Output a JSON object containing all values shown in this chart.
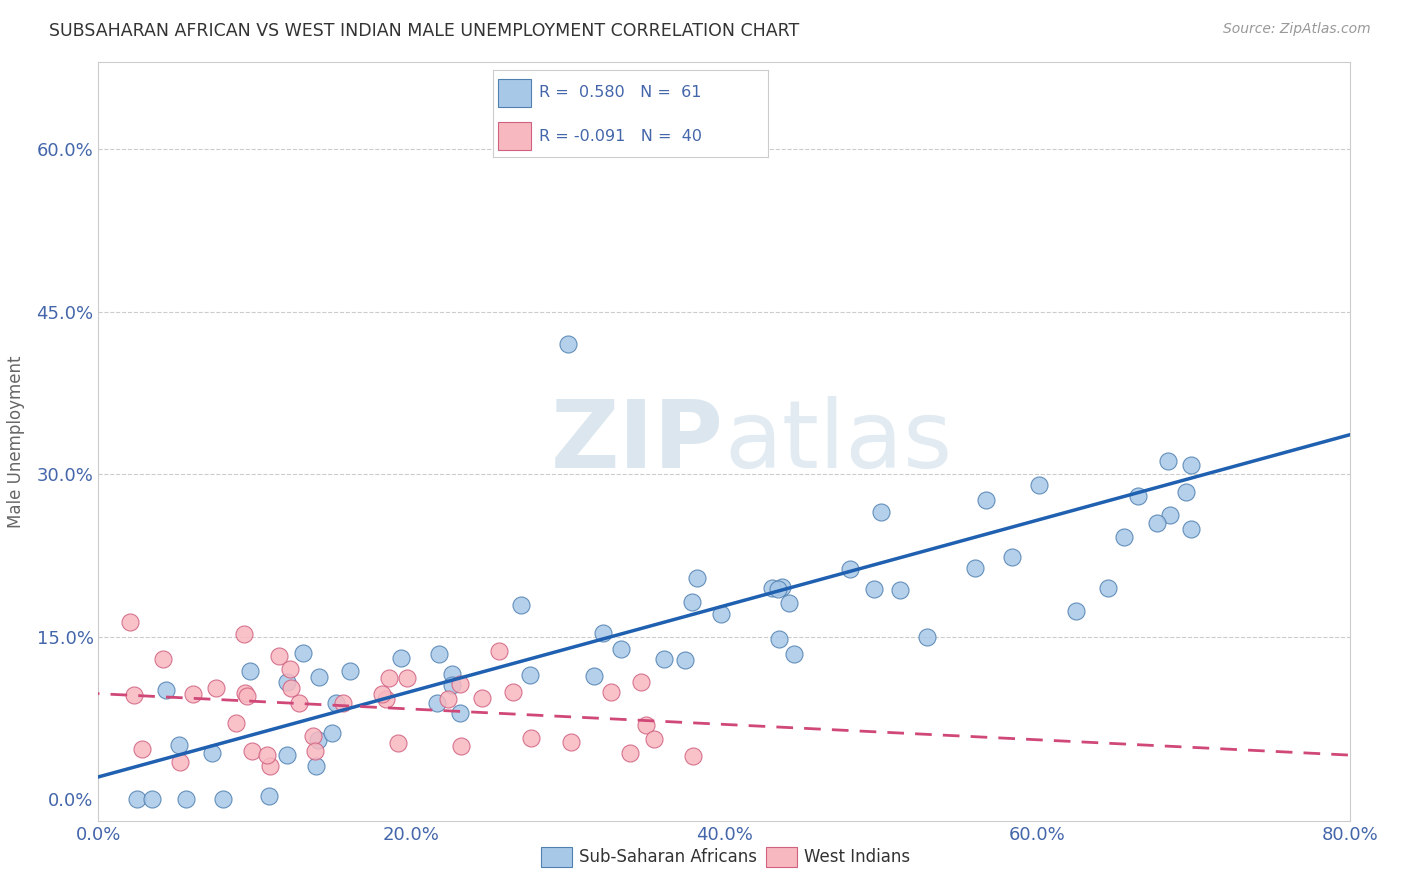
{
  "title": "SUBSAHARAN AFRICAN VS WEST INDIAN MALE UNEMPLOYMENT CORRELATION CHART",
  "source": "Source: ZipAtlas.com",
  "ylabel": "Male Unemployment",
  "xlim": [
    0.0,
    0.8
  ],
  "ylim": [
    -0.02,
    0.68
  ],
  "xticks": [
    0.0,
    0.2,
    0.4,
    0.6,
    0.8
  ],
  "yticks": [
    0.0,
    0.15,
    0.3,
    0.45,
    0.6
  ],
  "xtick_labels": [
    "0.0%",
    "20.0%",
    "40.0%",
    "60.0%",
    "80.0%"
  ],
  "ytick_labels": [
    "0.0%",
    "15.0%",
    "30.0%",
    "45.0%",
    "60.0%"
  ],
  "blue_R": 0.58,
  "blue_N": 61,
  "pink_R": -0.091,
  "pink_N": 40,
  "blue_color": "#a8c8e8",
  "pink_color": "#f8b8c0",
  "blue_edge_color": "#5080b0",
  "pink_edge_color": "#d06080",
  "blue_line_color": "#2060b0",
  "pink_line_color": "#d04878",
  "watermark_zip": "ZIP",
  "watermark_atlas": "atlas",
  "legend_label_blue": "Sub-Saharan Africans",
  "legend_label_pink": "West Indians",
  "background_color": "#ffffff",
  "grid_color": "#cccccc",
  "title_color": "#333333",
  "axis_tick_color": "#4466aa",
  "ylabel_color": "#666666"
}
